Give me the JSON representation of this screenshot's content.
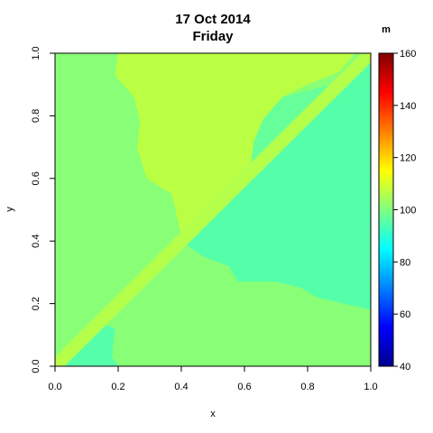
{
  "chart_data": {
    "type": "heatmap",
    "title": "17 Oct 2014",
    "subtitle": "Friday",
    "xlabel": "x",
    "ylabel": "y",
    "xlim": [
      0,
      1
    ],
    "ylim": [
      0,
      1
    ],
    "x_ticks": [
      "0.0",
      "0.2",
      "0.4",
      "0.6",
      "0.8",
      "1.0"
    ],
    "y_ticks": [
      "0.0",
      "0.2",
      "0.4",
      "0.6",
      "0.8",
      "1.0"
    ],
    "x_tick_values": [
      0,
      0.2,
      0.4,
      0.6,
      0.8,
      1.0
    ],
    "y_tick_values": [
      0,
      0.2,
      0.4,
      0.6,
      0.8,
      1.0
    ],
    "colorbar": {
      "unit": "m",
      "range": [
        40,
        160
      ],
      "ticks": [
        "40",
        "60",
        "80",
        "100",
        "120",
        "140",
        "160"
      ],
      "tick_values": [
        40,
        60,
        80,
        100,
        120,
        140,
        160
      ],
      "colors": [
        "#00008F",
        "#0000FF",
        "#0080FF",
        "#00FFFF",
        "#80FF80",
        "#FFFF00",
        "#FF8000",
        "#FF0000",
        "#800000"
      ]
    },
    "regions": [
      {
        "name": "left-band",
        "value": 101
      },
      {
        "name": "upper-middle",
        "value": 107
      },
      {
        "name": "right-lower",
        "value": 95
      },
      {
        "name": "upper-right",
        "value": 97
      },
      {
        "name": "bottom-middle",
        "value": 101
      },
      {
        "name": "bottom-left-corner",
        "value": 95
      },
      {
        "name": "diagonal-band",
        "value": 106
      }
    ]
  }
}
